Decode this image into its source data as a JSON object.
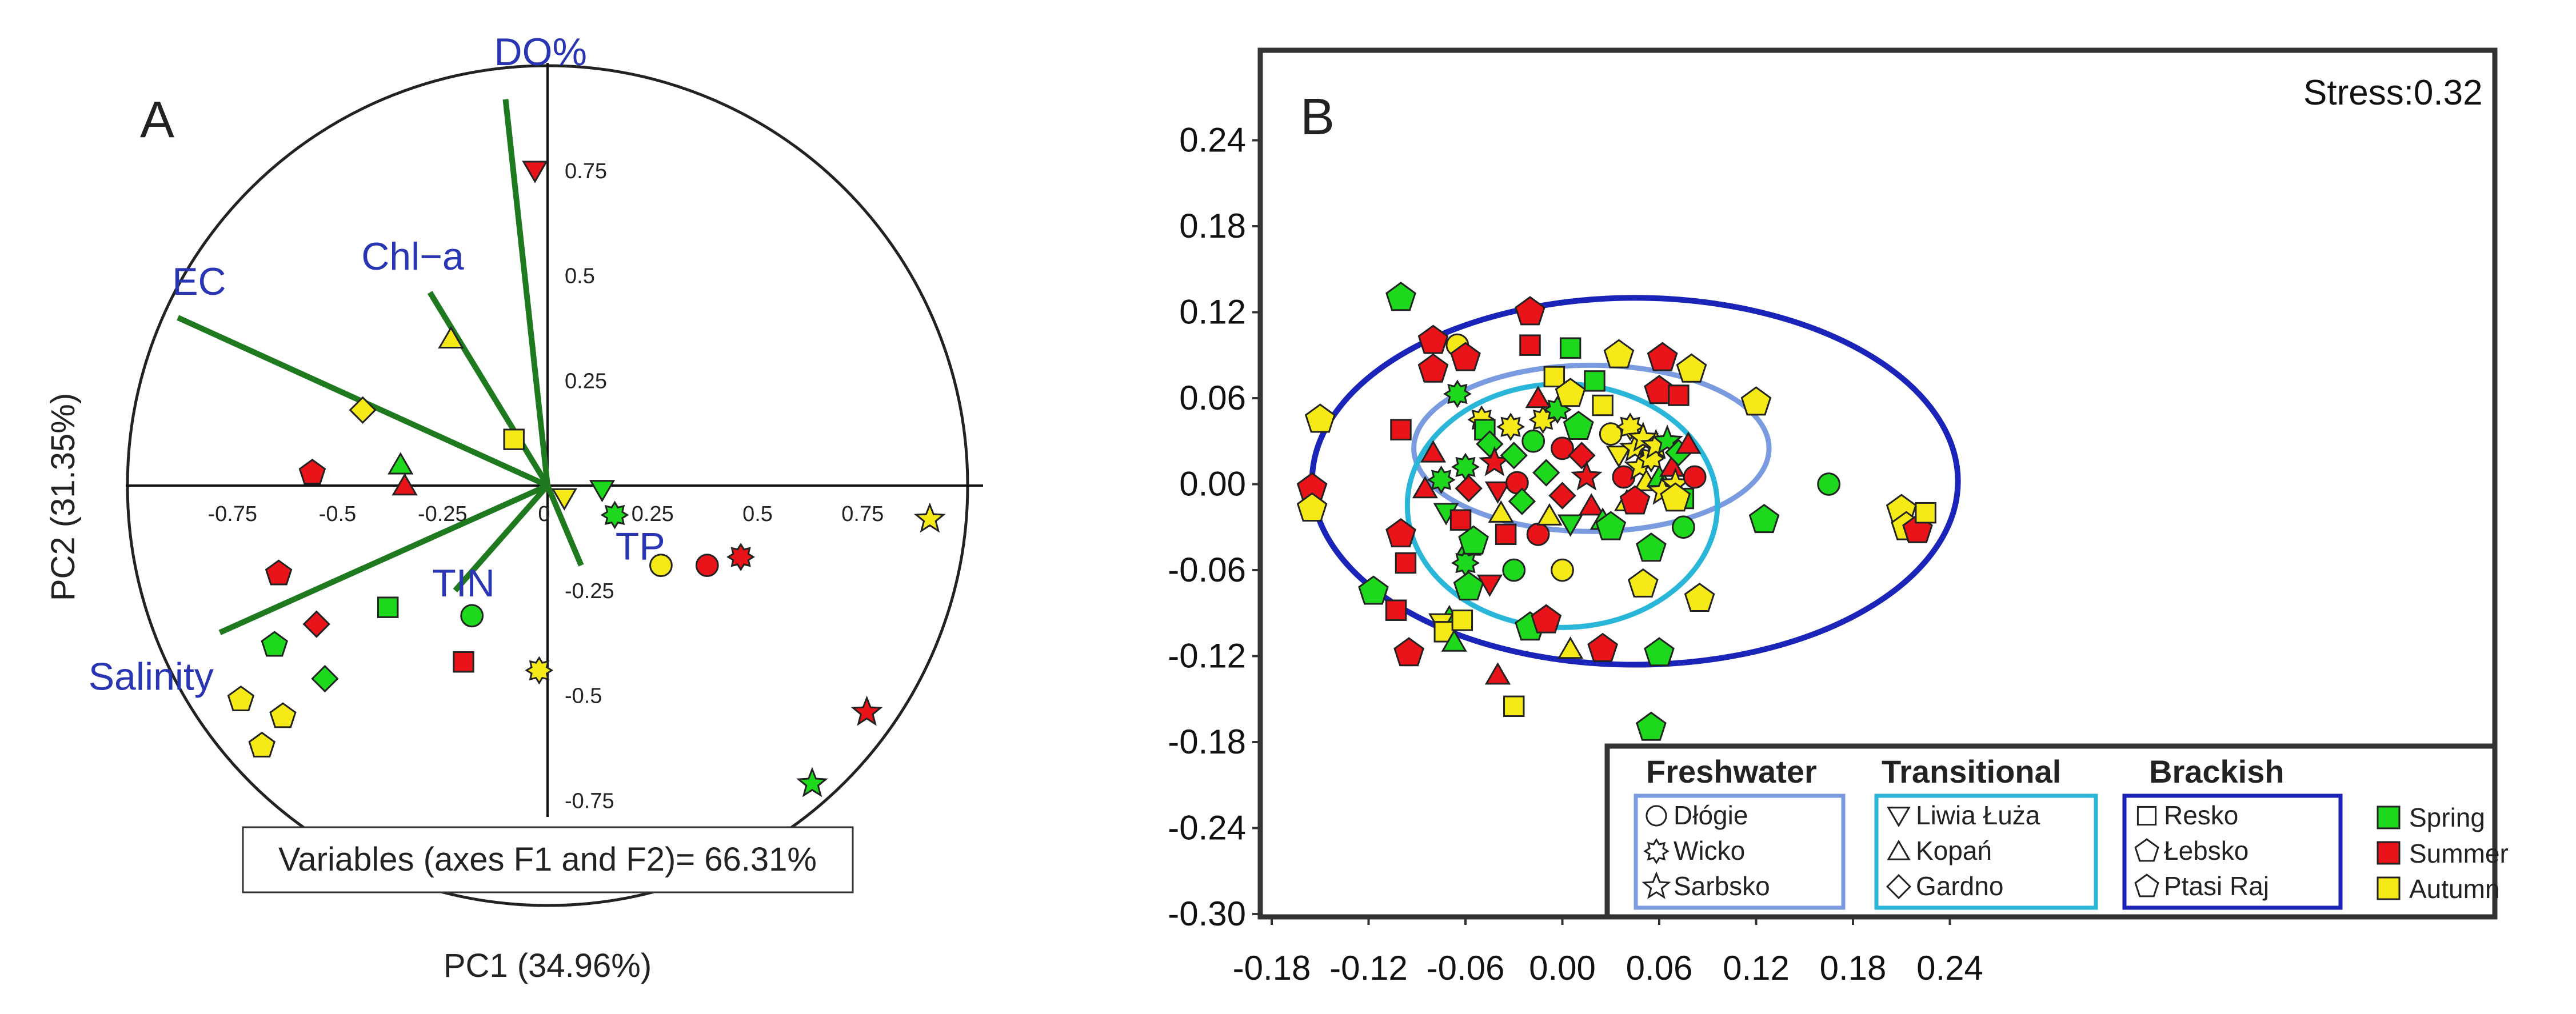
{
  "chart_data": [
    {
      "type": "scatter",
      "subtype": "pca-biplot",
      "panel_label": "A",
      "xlabel": "PC1 (34.96%)",
      "ylabel": "PC2 (31.35%)",
      "xlim": [
        -1,
        1
      ],
      "ylim": [
        -1,
        1
      ],
      "x_ticks": [
        "-0.75",
        "-0.5",
        "-0.25",
        "0",
        "0.25",
        "0.5",
        "0.75"
      ],
      "x_tick_values": [
        -0.75,
        -0.5,
        -0.25,
        0,
        0.25,
        0.5,
        0.75
      ],
      "y_ticks": [
        "0.75",
        "0.5",
        "0.25",
        "-0.25",
        "-0.5",
        "-0.75"
      ],
      "y_tick_values": [
        0.75,
        0.5,
        0.25,
        -0.25,
        -0.5,
        -0.75
      ],
      "caption": "Variables (axes F1 and F2)= 66.31%",
      "vector_color": "#1f7a1f",
      "loadings": [
        {
          "name": "DO%",
          "x": -0.1,
          "y": 0.92
        },
        {
          "name": "EC",
          "x": -0.88,
          "y": 0.4
        },
        {
          "name": "Chl−a",
          "x": -0.28,
          "y": 0.46
        },
        {
          "name": "TP",
          "x": 0.08,
          "y": -0.19
        },
        {
          "name": "TIN",
          "x": -0.22,
          "y": -0.25
        },
        {
          "name": "Salinity",
          "x": -0.78,
          "y": -0.35
        }
      ],
      "points": [
        {
          "x": -0.03,
          "y": 0.75,
          "site": "Liwia Łuża",
          "season": "Summer"
        },
        {
          "x": -0.23,
          "y": 0.35,
          "site": "Kopań",
          "season": "Autumn"
        },
        {
          "x": -0.44,
          "y": 0.18,
          "site": "Gardno",
          "season": "Autumn"
        },
        {
          "x": -0.35,
          "y": 0.05,
          "site": "Kopań",
          "season": "Spring"
        },
        {
          "x": -0.34,
          "y": 0.0,
          "site": "Kopań",
          "season": "Summer"
        },
        {
          "x": -0.56,
          "y": 0.03,
          "site": "Łebsko",
          "season": "Summer"
        },
        {
          "x": -0.08,
          "y": 0.11,
          "site": "Resko",
          "season": "Autumn"
        },
        {
          "x": 0.13,
          "y": -0.01,
          "site": "Liwia Łuża",
          "season": "Spring"
        },
        {
          "x": 0.04,
          "y": -0.03,
          "site": "Liwia Łuża",
          "season": "Autumn"
        },
        {
          "x": 0.16,
          "y": -0.07,
          "site": "Wicko",
          "season": "Spring"
        },
        {
          "x": 0.27,
          "y": -0.19,
          "site": "Dłógie",
          "season": "Autumn"
        },
        {
          "x": 0.38,
          "y": -0.19,
          "site": "Dłógie",
          "season": "Summer"
        },
        {
          "x": 0.46,
          "y": -0.17,
          "site": "Wicko",
          "season": "Summer"
        },
        {
          "x": 0.91,
          "y": -0.08,
          "site": "Sarbsko",
          "season": "Autumn"
        },
        {
          "x": -0.64,
          "y": -0.21,
          "site": "Łebsko",
          "season": "Summer"
        },
        {
          "x": -0.55,
          "y": -0.33,
          "site": "Gardno",
          "season": "Summer"
        },
        {
          "x": -0.65,
          "y": -0.38,
          "site": "Łebsko",
          "season": "Spring"
        },
        {
          "x": -0.53,
          "y": -0.46,
          "site": "Gardno",
          "season": "Spring"
        },
        {
          "x": -0.73,
          "y": -0.51,
          "site": "Łebsko",
          "season": "Autumn"
        },
        {
          "x": -0.63,
          "y": -0.55,
          "site": "Łebsko",
          "season": "Autumn"
        },
        {
          "x": -0.68,
          "y": -0.62,
          "site": "Łebsko",
          "season": "Autumn"
        },
        {
          "x": -0.38,
          "y": -0.29,
          "site": "Resko",
          "season": "Spring"
        },
        {
          "x": -0.18,
          "y": -0.31,
          "site": "Dłógie",
          "season": "Spring"
        },
        {
          "x": -0.2,
          "y": -0.42,
          "site": "Resko",
          "season": "Summer"
        },
        {
          "x": -0.02,
          "y": -0.44,
          "site": "Wicko",
          "season": "Autumn"
        },
        {
          "x": 0.76,
          "y": -0.54,
          "site": "Sarbsko",
          "season": "Summer"
        },
        {
          "x": 0.63,
          "y": -0.71,
          "site": "Sarbsko",
          "season": "Spring"
        }
      ]
    },
    {
      "type": "scatter",
      "subtype": "nmds",
      "panel_label": "B",
      "stress_label": "Stress:0.32",
      "xlim": [
        -0.18,
        0.3
      ],
      "ylim": [
        -0.3,
        0.3
      ],
      "x_ticks": [
        "-0.18",
        "-0.12",
        "-0.06",
        "0.00",
        "0.06",
        "0.12",
        "0.18",
        "0.24"
      ],
      "x_tick_values": [
        -0.18,
        -0.12,
        -0.06,
        0.0,
        0.06,
        0.12,
        0.18,
        0.24
      ],
      "y_ticks": [
        "0.24",
        "0.18",
        "0.12",
        "0.06",
        "0.00",
        "-0.06",
        "-0.12",
        "-0.18",
        "-0.24",
        "-0.30"
      ],
      "y_tick_values": [
        0.24,
        0.18,
        0.12,
        0.06,
        0.0,
        -0.06,
        -0.12,
        -0.18,
        -0.24,
        -0.3
      ],
      "ellipses": [
        {
          "group": "Brackish",
          "cx": 0.045,
          "cy": 0.002,
          "rx": 0.2,
          "ry": 0.128,
          "color": "#1a24b8"
        },
        {
          "group": "Freshwater",
          "cx": 0.018,
          "cy": 0.025,
          "rx": 0.11,
          "ry": 0.058,
          "color": "#7a9be0"
        },
        {
          "group": "Transitional",
          "cx": 0.0,
          "cy": -0.015,
          "rx": 0.096,
          "ry": 0.085,
          "color": "#2ab6d8"
        }
      ],
      "legend": {
        "groups": [
          {
            "title": "Freshwater",
            "items": [
              "Dłógie",
              "Wicko",
              "Sarbsko"
            ],
            "color": "#7a9be0"
          },
          {
            "title": "Transitional",
            "items": [
              "Liwia Łuża",
              "Kopań",
              "Gardno"
            ],
            "color": "#2ab6d8"
          },
          {
            "title": "Brackish",
            "items": [
              "Resko",
              "Łebsko",
              "Ptasi Raj"
            ],
            "color": "#1a24b8"
          }
        ],
        "seasons": [
          {
            "name": "Spring",
            "color": "#1ed81e"
          },
          {
            "name": "Summer",
            "color": "#e8141a"
          },
          {
            "name": "Autumn",
            "color": "#f5ea18"
          }
        ]
      },
      "points": [
        {
          "x": -0.1,
          "y": 0.13,
          "s": "pent",
          "c": "Spring"
        },
        {
          "x": -0.15,
          "y": 0.045,
          "s": "pent",
          "c": "Autumn"
        },
        {
          "x": -0.155,
          "y": -0.003,
          "s": "pent",
          "c": "Summer"
        },
        {
          "x": -0.155,
          "y": -0.017,
          "s": "pent",
          "c": "Autumn"
        },
        {
          "x": -0.1,
          "y": 0.038,
          "s": "sq",
          "c": "Summer"
        },
        {
          "x": -0.1,
          "y": -0.035,
          "s": "pent",
          "c": "Summer"
        },
        {
          "x": -0.097,
          "y": -0.055,
          "s": "sq",
          "c": "Summer"
        },
        {
          "x": -0.117,
          "y": -0.075,
          "s": "pent",
          "c": "Spring"
        },
        {
          "x": -0.103,
          "y": -0.088,
          "s": "sq",
          "c": "Summer"
        },
        {
          "x": -0.095,
          "y": -0.118,
          "s": "pent",
          "c": "Summer"
        },
        {
          "x": -0.08,
          "y": 0.08,
          "s": "pent",
          "c": "Summer"
        },
        {
          "x": -0.065,
          "y": 0.097,
          "s": "circ",
          "c": "Autumn"
        },
        {
          "x": -0.06,
          "y": 0.088,
          "s": "pent",
          "c": "Summer"
        },
        {
          "x": -0.065,
          "y": 0.063,
          "s": "star6",
          "c": "Spring"
        },
        {
          "x": -0.085,
          "y": -0.003,
          "s": "tri",
          "c": "Summer"
        },
        {
          "x": -0.075,
          "y": 0.003,
          "s": "star6",
          "c": "Spring"
        },
        {
          "x": -0.06,
          "y": 0.012,
          "s": "star6",
          "c": "Spring"
        },
        {
          "x": -0.058,
          "y": -0.003,
          "s": "dia",
          "c": "Summer"
        },
        {
          "x": -0.072,
          "y": -0.02,
          "s": "tri",
          "c": "Spring"
        },
        {
          "x": -0.063,
          "y": -0.025,
          "s": "sq",
          "c": "Summer"
        },
        {
          "x": -0.058,
          "y": -0.043,
          "s": "tri",
          "c": "Spring"
        },
        {
          "x": -0.06,
          "y": -0.055,
          "s": "star6",
          "c": "Spring"
        },
        {
          "x": -0.058,
          "y": -0.072,
          "s": "pent",
          "c": "Spring"
        },
        {
          "x": -0.07,
          "y": -0.093,
          "s": "tri",
          "c": "Spring"
        },
        {
          "x": -0.075,
          "y": -0.097,
          "s": "tri",
          "c": "Autumn"
        },
        {
          "x": -0.073,
          "y": -0.103,
          "s": "sq",
          "c": "Autumn"
        },
        {
          "x": -0.067,
          "y": -0.11,
          "s": "tri",
          "c": "Spring"
        },
        {
          "x": -0.062,
          "y": -0.095,
          "s": "sq",
          "c": "Autumn"
        },
        {
          "x": -0.055,
          "y": -0.04,
          "s": "pent",
          "c": "Spring"
        },
        {
          "x": -0.05,
          "y": 0.045,
          "s": "star6",
          "c": "Autumn"
        },
        {
          "x": -0.048,
          "y": 0.038,
          "s": "sq",
          "c": "Spring"
        },
        {
          "x": -0.045,
          "y": 0.028,
          "s": "dia",
          "c": "Spring"
        },
        {
          "x": -0.042,
          "y": 0.015,
          "s": "star",
          "c": "Summer"
        },
        {
          "x": -0.04,
          "y": -0.005,
          "s": "tri",
          "c": "Summer"
        },
        {
          "x": -0.038,
          "y": -0.02,
          "s": "tri",
          "c": "Autumn"
        },
        {
          "x": -0.035,
          "y": -0.035,
          "s": "sq",
          "c": "Summer"
        },
        {
          "x": -0.032,
          "y": 0.04,
          "s": "star6",
          "c": "Autumn"
        },
        {
          "x": -0.03,
          "y": 0.02,
          "s": "dia",
          "c": "Spring"
        },
        {
          "x": -0.028,
          "y": 0.001,
          "s": "circ",
          "c": "Summer"
        },
        {
          "x": -0.025,
          "y": -0.012,
          "s": "dia",
          "c": "Spring"
        },
        {
          "x": -0.02,
          "y": 0.097,
          "s": "sq",
          "c": "Summer"
        },
        {
          "x": -0.018,
          "y": 0.03,
          "s": "circ",
          "c": "Spring"
        },
        {
          "x": -0.015,
          "y": -0.035,
          "s": "circ",
          "c": "Summer"
        },
        {
          "x": -0.015,
          "y": 0.06,
          "s": "tri",
          "c": "Summer"
        },
        {
          "x": -0.012,
          "y": 0.045,
          "s": "star6",
          "c": "Autumn"
        },
        {
          "x": -0.01,
          "y": 0.008,
          "s": "dia",
          "c": "Spring"
        },
        {
          "x": -0.008,
          "y": -0.022,
          "s": "tri",
          "c": "Autumn"
        },
        {
          "x": -0.005,
          "y": 0.075,
          "s": "sq",
          "c": "Autumn"
        },
        {
          "x": -0.003,
          "y": 0.052,
          "s": "star6",
          "c": "Spring"
        },
        {
          "x": 0.0,
          "y": 0.025,
          "s": "circ",
          "c": "Summer"
        },
        {
          "x": 0.0,
          "y": -0.008,
          "s": "dia",
          "c": "Summer"
        },
        {
          "x": 0.005,
          "y": -0.028,
          "s": "tri",
          "c": "Spring"
        },
        {
          "x": 0.005,
          "y": 0.063,
          "s": "pent",
          "c": "Autumn"
        },
        {
          "x": 0.01,
          "y": 0.04,
          "s": "pent",
          "c": "Spring"
        },
        {
          "x": 0.012,
          "y": 0.02,
          "s": "dia",
          "c": "Summer"
        },
        {
          "x": 0.015,
          "y": 0.005,
          "s": "star",
          "c": "Summer"
        },
        {
          "x": 0.018,
          "y": -0.015,
          "s": "tri",
          "c": "Summer"
        },
        {
          "x": 0.02,
          "y": 0.072,
          "s": "sq",
          "c": "Spring"
        },
        {
          "x": 0.025,
          "y": -0.025,
          "s": "tri",
          "c": "Spring"
        },
        {
          "x": 0.025,
          "y": 0.055,
          "s": "sq",
          "c": "Autumn"
        },
        {
          "x": 0.005,
          "y": 0.095,
          "s": "sq",
          "c": "Spring"
        },
        {
          "x": -0.02,
          "y": 0.12,
          "s": "pent",
          "c": "Summer"
        },
        {
          "x": -0.08,
          "y": 0.1,
          "s": "pent",
          "c": "Summer"
        },
        {
          "x": -0.02,
          "y": -0.1,
          "s": "pent",
          "c": "Spring"
        },
        {
          "x": -0.01,
          "y": -0.095,
          "s": "pent",
          "c": "Summer"
        },
        {
          "x": 0.005,
          "y": -0.115,
          "s": "tri",
          "c": "Autumn"
        },
        {
          "x": 0.025,
          "y": -0.115,
          "s": "pent",
          "c": "Summer"
        },
        {
          "x": -0.03,
          "y": -0.155,
          "s": "sq",
          "c": "Autumn"
        },
        {
          "x": -0.04,
          "y": -0.133,
          "s": "tri",
          "c": "Summer"
        },
        {
          "x": 0.055,
          "y": -0.17,
          "s": "pent",
          "c": "Spring"
        },
        {
          "x": 0.06,
          "y": -0.118,
          "s": "pent",
          "c": "Spring"
        },
        {
          "x": 0.03,
          "y": 0.035,
          "s": "circ",
          "c": "Autumn"
        },
        {
          "x": 0.035,
          "y": 0.02,
          "s": "tri",
          "c": "Autumn"
        },
        {
          "x": 0.038,
          "y": 0.005,
          "s": "circ",
          "c": "Summer"
        },
        {
          "x": 0.04,
          "y": -0.012,
          "s": "tri",
          "c": "Autumn"
        },
        {
          "x": 0.042,
          "y": 0.04,
          "s": "star6",
          "c": "Autumn"
        },
        {
          "x": 0.045,
          "y": 0.025,
          "s": "star",
          "c": "Autumn"
        },
        {
          "x": 0.048,
          "y": 0.012,
          "s": "star",
          "c": "Autumn"
        },
        {
          "x": 0.05,
          "y": 0.032,
          "s": "star",
          "c": "Autumn"
        },
        {
          "x": 0.052,
          "y": 0.002,
          "s": "tri",
          "c": "Autumn"
        },
        {
          "x": 0.055,
          "y": 0.018,
          "s": "star6",
          "c": "Autumn"
        },
        {
          "x": 0.058,
          "y": 0.027,
          "s": "star",
          "c": "Autumn"
        },
        {
          "x": 0.06,
          "y": 0.005,
          "s": "tri",
          "c": "Spring"
        },
        {
          "x": 0.062,
          "y": -0.005,
          "s": "star",
          "c": "Autumn"
        },
        {
          "x": 0.065,
          "y": 0.03,
          "s": "star",
          "c": "Spring"
        },
        {
          "x": 0.068,
          "y": 0.012,
          "s": "tri",
          "c": "Summer"
        },
        {
          "x": 0.07,
          "y": 0.0,
          "s": "star",
          "c": "Autumn"
        },
        {
          "x": 0.072,
          "y": 0.022,
          "s": "dia",
          "c": "Spring"
        },
        {
          "x": 0.075,
          "y": -0.01,
          "s": "sq",
          "c": "Spring"
        },
        {
          "x": 0.078,
          "y": 0.028,
          "s": "tri",
          "c": "Summer"
        },
        {
          "x": 0.035,
          "y": 0.09,
          "s": "pent",
          "c": "Autumn"
        },
        {
          "x": 0.06,
          "y": 0.065,
          "s": "pent",
          "c": "Summer"
        },
        {
          "x": 0.062,
          "y": 0.088,
          "s": "pent",
          "c": "Summer"
        },
        {
          "x": 0.072,
          "y": 0.062,
          "s": "sq",
          "c": "Summer"
        },
        {
          "x": 0.08,
          "y": 0.08,
          "s": "pent",
          "c": "Autumn"
        },
        {
          "x": 0.082,
          "y": 0.005,
          "s": "circ",
          "c": "Summer"
        },
        {
          "x": 0.07,
          "y": -0.01,
          "s": "pent",
          "c": "Autumn"
        },
        {
          "x": 0.055,
          "y": -0.045,
          "s": "pent",
          "c": "Spring"
        },
        {
          "x": 0.05,
          "y": -0.07,
          "s": "pent",
          "c": "Autumn"
        },
        {
          "x": 0.085,
          "y": -0.08,
          "s": "pent",
          "c": "Autumn"
        },
        {
          "x": 0.075,
          "y": -0.03,
          "s": "circ",
          "c": "Spring"
        },
        {
          "x": 0.12,
          "y": 0.057,
          "s": "pent",
          "c": "Autumn"
        },
        {
          "x": 0.125,
          "y": -0.025,
          "s": "pent",
          "c": "Spring"
        },
        {
          "x": 0.165,
          "y": 0.0,
          "s": "circ",
          "c": "Spring"
        },
        {
          "x": 0.21,
          "y": -0.018,
          "s": "pent",
          "c": "Autumn"
        },
        {
          "x": 0.213,
          "y": -0.03,
          "s": "pent",
          "c": "Autumn"
        },
        {
          "x": 0.22,
          "y": -0.032,
          "s": "pent",
          "c": "Summer"
        },
        {
          "x": 0.225,
          "y": -0.02,
          "s": "sq",
          "c": "Autumn"
        },
        {
          "x": -0.045,
          "y": -0.07,
          "s": "tri",
          "c": "Summer"
        },
        {
          "x": -0.08,
          "y": 0.022,
          "s": "tri",
          "c": "Summer"
        },
        {
          "x": -0.03,
          "y": -0.06,
          "s": "circ",
          "c": "Spring"
        },
        {
          "x": 0.0,
          "y": -0.06,
          "s": "circ",
          "c": "Autumn"
        },
        {
          "x": 0.03,
          "y": -0.03,
          "s": "pent",
          "c": "Spring"
        },
        {
          "x": 0.045,
          "y": -0.012,
          "s": "pent",
          "c": "Summer"
        }
      ]
    }
  ]
}
